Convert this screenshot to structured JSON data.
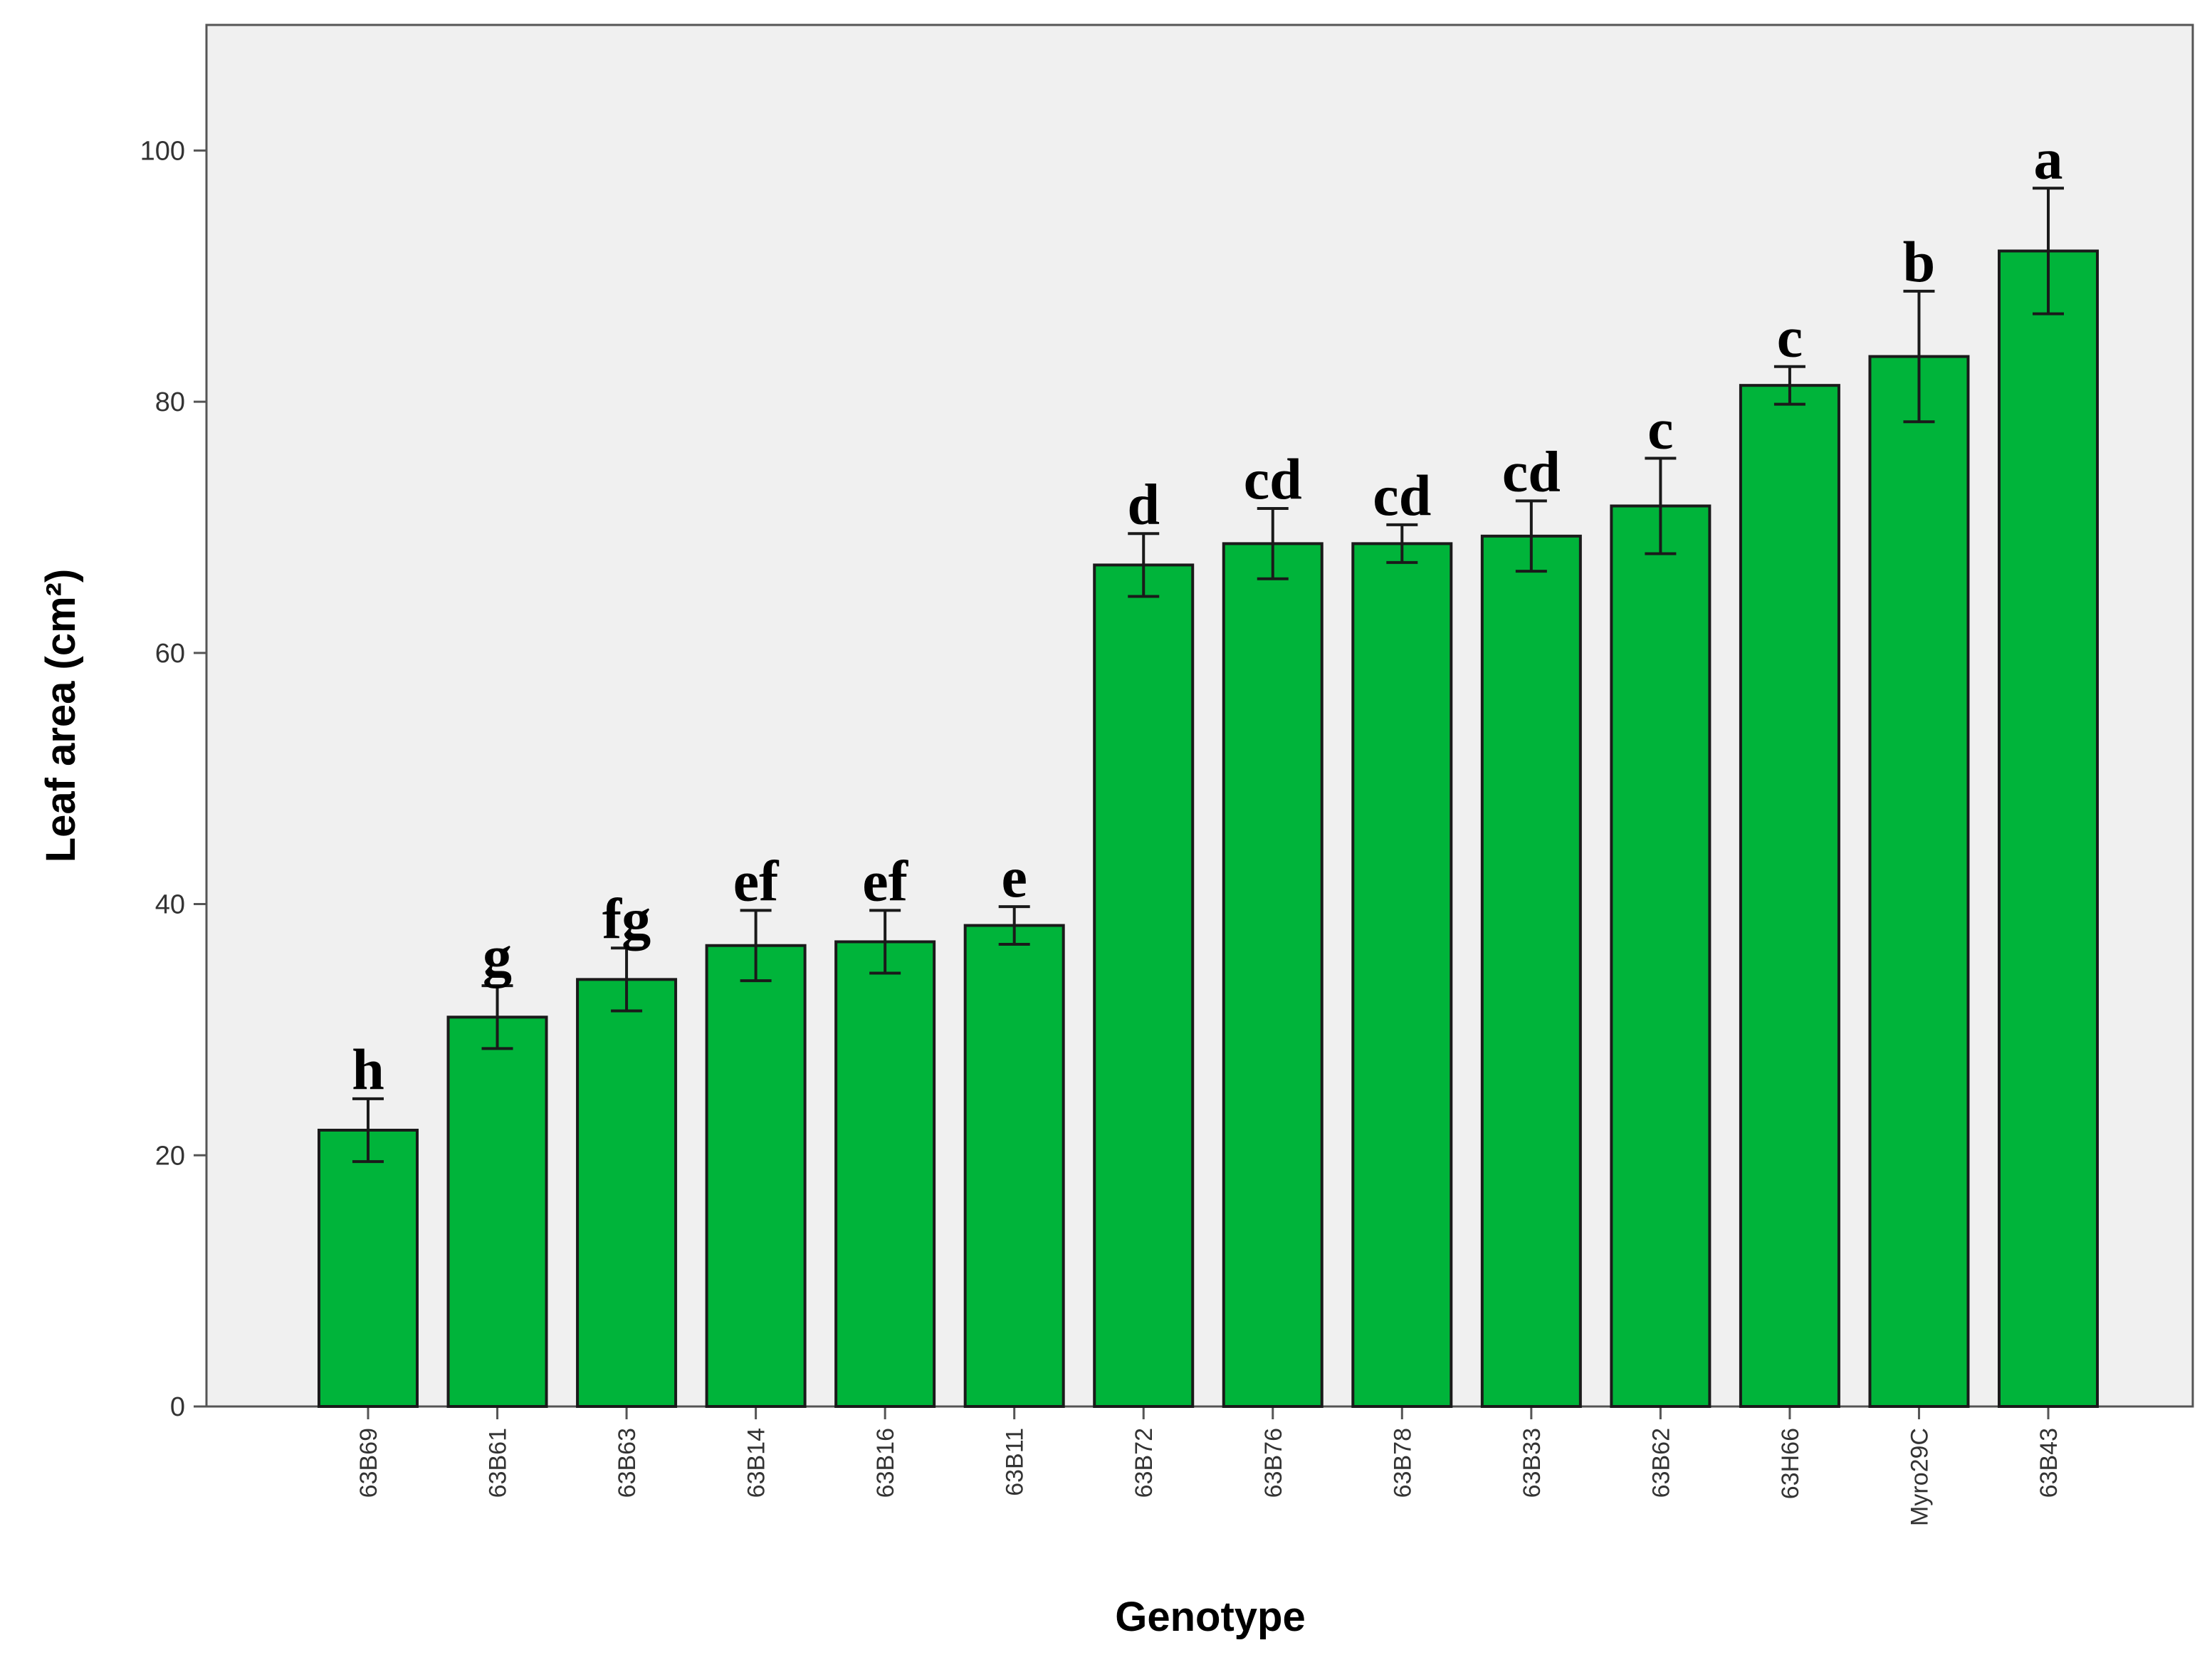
{
  "chart_data": {
    "type": "bar",
    "title": "",
    "xlabel": "Genotype",
    "ylabel": "Leaf area (cm²)",
    "ylim": [
      0,
      110
    ],
    "yticks": [
      0,
      20,
      40,
      60,
      80,
      100
    ],
    "ytick_labels": [
      "0",
      "20",
      "40",
      "60",
      "80",
      "100"
    ],
    "categories": [
      "63B69",
      "63B61",
      "63B63",
      "63B14",
      "63B16",
      "63B11",
      "63B72",
      "63B76",
      "63B78",
      "63B33",
      "63B62",
      "63H66",
      "Myro29C",
      "63B43"
    ],
    "values": [
      22,
      31,
      34,
      36.7,
      37,
      38.3,
      67,
      68.7,
      68.7,
      69.3,
      71.7,
      81.3,
      83.6,
      92
    ],
    "error": [
      2.5,
      2.5,
      2.5,
      2.8,
      2.5,
      1.5,
      2.5,
      2.8,
      1.5,
      2.8,
      3.8,
      1.5,
      5.2,
      5
    ],
    "significance_letters": [
      "h",
      "g",
      "fg",
      "ef",
      "ef",
      "e",
      "d",
      "cd",
      "cd",
      "cd",
      "c",
      "c",
      "b",
      "a"
    ],
    "bar_color": "#00b43a",
    "bar_edge_color": "#1a1a1a",
    "plot_background": "#f0f0f0",
    "grid": false,
    "legend": "none"
  }
}
